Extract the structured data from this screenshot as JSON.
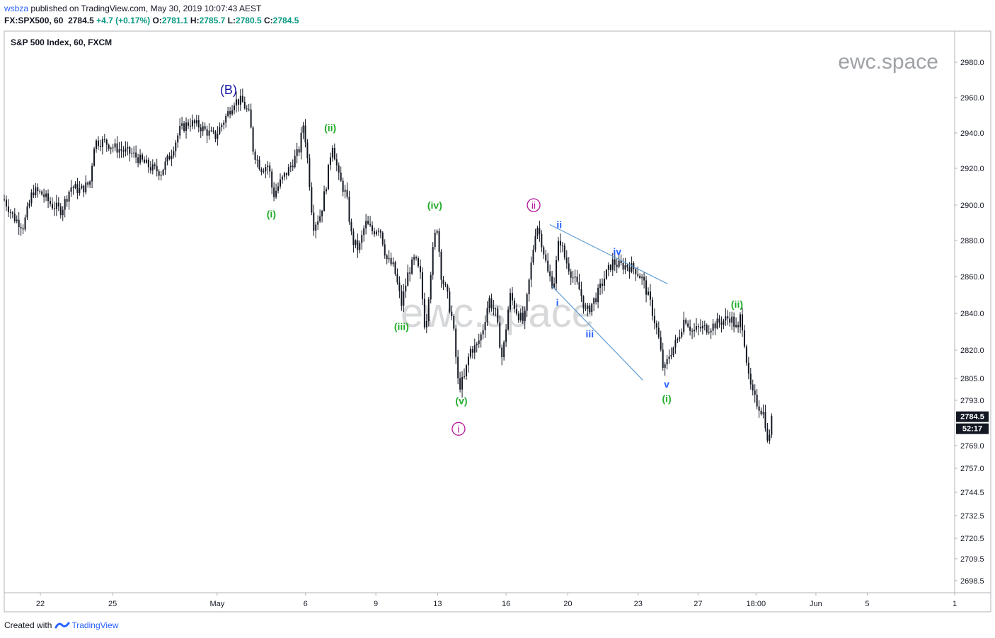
{
  "header": {
    "user": "wsbza",
    "published": " published on TradingView.com, May 30, 2019 10:07:43 AEST",
    "symbol": "FX:SPX500, 60",
    "last": "2784.5",
    "change": "+4.7 (+0.17%)",
    "o_label": "O:",
    "o": "2781.1",
    "h_label": "H:",
    "h": "2785.7",
    "l_label": "L:",
    "l": "2780.5",
    "c_label": "C:",
    "c": "2784.5"
  },
  "chart_title": "S&P 500 Index, 60, FXCM",
  "watermark_small": "ewc.space",
  "watermark_big": "ewc.space",
  "price_badge": "2784.5",
  "countdown_badge": "52:17",
  "footer": {
    "created": "Created with",
    "brand": "TradingView"
  },
  "colors": {
    "candle": "#131722",
    "green": "#22ab2b",
    "purple": "#b5179e",
    "blue": "#2962ff",
    "navy": "#1a1aa8",
    "trendline": "#5b9bd5"
  },
  "chart_data": {
    "type": "candlestick",
    "title": "S&P 500 Index, 60, FXCM",
    "ylim": [
      2690,
      2990
    ],
    "yticks": [
      2980.0,
      2960.0,
      2940.0,
      2920.0,
      2900.0,
      2880.0,
      2860.0,
      2840.0,
      2820.0,
      2805.0,
      2793.0,
      2769.0,
      2757.0,
      2744.5,
      2732.5,
      2720.5,
      2709.5,
      2698.5
    ],
    "ytick_labels": [
      "2980.0",
      "2960.0",
      "2940.0",
      "2920.0",
      "2900.0",
      "2880.0",
      "2860.0",
      "2840.0",
      "2820.0",
      "2805.0",
      "2793.0",
      "2769.0",
      "2757.0",
      "2744.5",
      "2732.5",
      "2720.5",
      "2709.5",
      "2698.5"
    ],
    "xticks": [
      {
        "label": "22",
        "x": 0.038
      },
      {
        "label": "25",
        "x": 0.114
      },
      {
        "label": "May",
        "x": 0.224
      },
      {
        "label": "6",
        "x": 0.317
      },
      {
        "label": "9",
        "x": 0.391
      },
      {
        "label": "13",
        "x": 0.456
      },
      {
        "label": "16",
        "x": 0.528
      },
      {
        "label": "20",
        "x": 0.593
      },
      {
        "label": "23",
        "x": 0.667
      },
      {
        "label": "27",
        "x": 0.73
      },
      {
        "label": "18:00",
        "x": 0.791
      },
      {
        "label": "Jun",
        "x": 0.854
      },
      {
        "label": "5",
        "x": 0.908
      },
      {
        "label": "1",
        "x": 1.0
      }
    ],
    "price_path": [
      [
        0.0,
        2903
      ],
      [
        0.01,
        2893
      ],
      [
        0.02,
        2888
      ],
      [
        0.03,
        2908
      ],
      [
        0.04,
        2906
      ],
      [
        0.05,
        2900
      ],
      [
        0.06,
        2897
      ],
      [
        0.07,
        2910
      ],
      [
        0.08,
        2908
      ],
      [
        0.09,
        2912
      ],
      [
        0.095,
        2935
      ],
      [
        0.105,
        2935
      ],
      [
        0.115,
        2932
      ],
      [
        0.125,
        2930
      ],
      [
        0.135,
        2928
      ],
      [
        0.145,
        2924
      ],
      [
        0.155,
        2920
      ],
      [
        0.165,
        2918
      ],
      [
        0.175,
        2928
      ],
      [
        0.185,
        2942
      ],
      [
        0.195,
        2946
      ],
      [
        0.205,
        2944
      ],
      [
        0.215,
        2940
      ],
      [
        0.222,
        2938
      ],
      [
        0.232,
        2948
      ],
      [
        0.242,
        2958
      ],
      [
        0.25,
        2958
      ],
      [
        0.258,
        2950
      ],
      [
        0.262,
        2930
      ],
      [
        0.27,
        2920
      ],
      [
        0.278,
        2922
      ],
      [
        0.283,
        2905
      ],
      [
        0.29,
        2912
      ],
      [
        0.3,
        2920
      ],
      [
        0.31,
        2930
      ],
      [
        0.315,
        2946
      ],
      [
        0.32,
        2920
      ],
      [
        0.325,
        2888
      ],
      [
        0.333,
        2895
      ],
      [
        0.34,
        2915
      ],
      [
        0.345,
        2935
      ],
      [
        0.352,
        2915
      ],
      [
        0.36,
        2905
      ],
      [
        0.366,
        2880
      ],
      [
        0.373,
        2875
      ],
      [
        0.38,
        2890
      ],
      [
        0.388,
        2885
      ],
      [
        0.395,
        2888
      ],
      [
        0.402,
        2870
      ],
      [
        0.41,
        2865
      ],
      [
        0.418,
        2845
      ],
      [
        0.425,
        2862
      ],
      [
        0.432,
        2870
      ],
      [
        0.438,
        2860
      ],
      [
        0.443,
        2830
      ],
      [
        0.45,
        2870
      ],
      [
        0.455,
        2890
      ],
      [
        0.46,
        2860
      ],
      [
        0.466,
        2850
      ],
      [
        0.472,
        2835
      ],
      [
        0.478,
        2800
      ],
      [
        0.484,
        2805
      ],
      [
        0.49,
        2820
      ],
      [
        0.497,
        2822
      ],
      [
        0.503,
        2830
      ],
      [
        0.51,
        2848
      ],
      [
        0.517,
        2840
      ],
      [
        0.524,
        2815
      ],
      [
        0.532,
        2850
      ],
      [
        0.54,
        2840
      ],
      [
        0.547,
        2835
      ],
      [
        0.554,
        2865
      ],
      [
        0.56,
        2890
      ],
      [
        0.566,
        2878
      ],
      [
        0.572,
        2862
      ],
      [
        0.578,
        2855
      ],
      [
        0.584,
        2882
      ],
      [
        0.59,
        2870
      ],
      [
        0.598,
        2860
      ],
      [
        0.606,
        2852
      ],
      [
        0.612,
        2840
      ],
      [
        0.618,
        2845
      ],
      [
        0.624,
        2850
      ],
      [
        0.632,
        2860
      ],
      [
        0.64,
        2868
      ],
      [
        0.648,
        2866
      ],
      [
        0.656,
        2866
      ],
      [
        0.664,
        2864
      ],
      [
        0.672,
        2858
      ],
      [
        0.68,
        2845
      ],
      [
        0.688,
        2828
      ],
      [
        0.694,
        2808
      ],
      [
        0.7,
        2818
      ],
      [
        0.708,
        2825
      ],
      [
        0.716,
        2838
      ],
      [
        0.724,
        2830
      ],
      [
        0.732,
        2832
      ],
      [
        0.74,
        2832
      ],
      [
        0.748,
        2834
      ],
      [
        0.756,
        2836
      ],
      [
        0.764,
        2838
      ],
      [
        0.772,
        2830
      ],
      [
        0.775,
        2840
      ],
      [
        0.78,
        2820
      ],
      [
        0.783,
        2805
      ],
      [
        0.788,
        2795
      ],
      [
        0.794,
        2790
      ],
      [
        0.8,
        2785
      ],
      [
        0.803,
        2770
      ],
      [
        0.808,
        2784
      ]
    ],
    "elliott_labels": [
      {
        "text": "(B)",
        "x": 0.236,
        "price": 2962,
        "color": "navy",
        "size": 18
      },
      {
        "text": "(i)",
        "x": 0.281,
        "price": 2893,
        "color": "green",
        "size": 14
      },
      {
        "text": "(ii)",
        "x": 0.343,
        "price": 2941,
        "color": "green",
        "size": 14
      },
      {
        "text": "(iii)",
        "x": 0.418,
        "price": 2831,
        "color": "green",
        "size": 14
      },
      {
        "text": "(iv)",
        "x": 0.453,
        "price": 2898,
        "color": "green",
        "size": 14
      },
      {
        "text": "(v)",
        "x": 0.481,
        "price": 2791,
        "color": "green",
        "size": 14
      },
      {
        "text": "i",
        "x": 0.478,
        "price": 2776,
        "color": "purple",
        "size": 14,
        "circled": true
      },
      {
        "text": "ii",
        "x": 0.557,
        "price": 2898,
        "color": "purple",
        "size": 14,
        "circled": true
      },
      {
        "text": "ii",
        "x": 0.584,
        "price": 2887,
        "color": "blue",
        "size": 14
      },
      {
        "text": "i",
        "x": 0.582,
        "price": 2844,
        "color": "blue",
        "size": 14
      },
      {
        "text": "iii",
        "x": 0.616,
        "price": 2827,
        "color": "blue",
        "size": 14
      },
      {
        "text": "iv",
        "x": 0.645,
        "price": 2872,
        "color": "blue",
        "size": 14
      },
      {
        "text": "v",
        "x": 0.697,
        "price": 2800,
        "color": "blue",
        "size": 14
      },
      {
        "text": "(i)",
        "x": 0.697,
        "price": 2792,
        "color": "green",
        "size": 14
      },
      {
        "text": "(ii)",
        "x": 0.771,
        "price": 2843,
        "color": "green",
        "size": 14
      }
    ],
    "trendlines": [
      {
        "x1": 0.574,
        "p1": 2889,
        "x2": 0.698,
        "p2": 2856
      },
      {
        "x1": 0.576,
        "p1": 2855,
        "x2": 0.672,
        "p2": 2804
      }
    ],
    "grid": false,
    "legend": "none"
  }
}
